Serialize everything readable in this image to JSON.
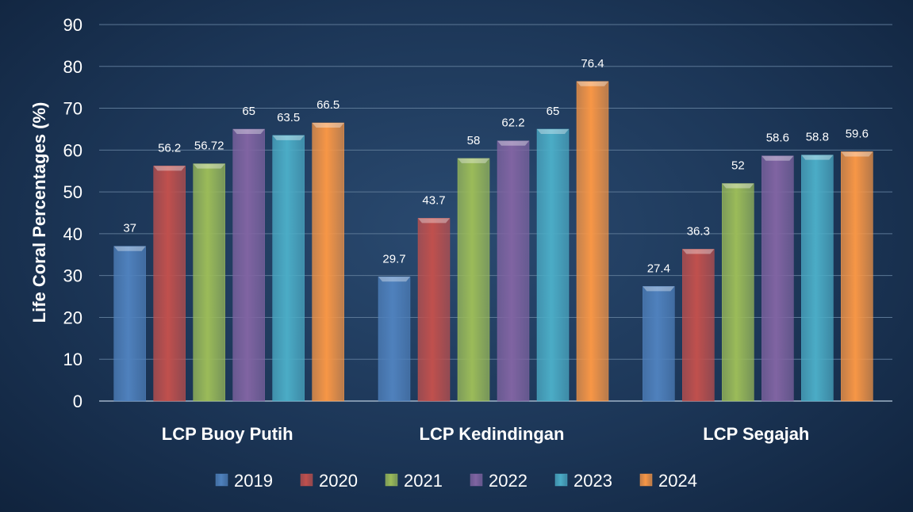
{
  "chart_data": {
    "type": "bar",
    "title": "",
    "xlabel": "",
    "ylabel": "Life Coral Percentages (%)",
    "ylim": [
      0,
      90
    ],
    "yticks": [
      0,
      10,
      20,
      30,
      40,
      50,
      60,
      70,
      80,
      90
    ],
    "grid": true,
    "legend_position": "bottom",
    "categories": [
      "LCP Buoy Putih",
      "LCP Kedindingan",
      "LCP Segajah"
    ],
    "series": [
      {
        "name": "2019",
        "color": "#4f81bd",
        "values": [
          37,
          29.7,
          27.4
        ],
        "labels": [
          "37",
          "29.7",
          "27.4"
        ]
      },
      {
        "name": "2020",
        "color": "#c0504d",
        "values": [
          56.2,
          43.7,
          36.3
        ],
        "labels": [
          "56.2",
          "43.7",
          "36.3"
        ]
      },
      {
        "name": "2021",
        "color": "#9bbb59",
        "values": [
          56.72,
          58,
          52
        ],
        "labels": [
          "56.72",
          "58",
          "52"
        ]
      },
      {
        "name": "2022",
        "color": "#8064a2",
        "values": [
          65,
          62.2,
          58.6
        ],
        "labels": [
          "65",
          "62.2",
          "58.6"
        ]
      },
      {
        "name": "2023",
        "color": "#4bacc6",
        "values": [
          63.5,
          65,
          58.8
        ],
        "labels": [
          "63.5",
          "65",
          "58.8"
        ]
      },
      {
        "name": "2024",
        "color": "#f79646",
        "values": [
          66.5,
          76.4,
          59.6
        ],
        "labels": [
          "66.5",
          "76.4",
          "59.6"
        ]
      }
    ]
  }
}
